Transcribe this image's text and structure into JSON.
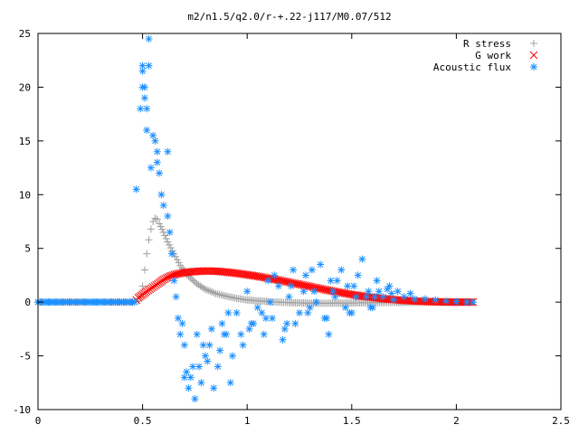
{
  "chart_data": {
    "type": "scatter",
    "title": "m2/n1.5/q2.0/r-+.22-j117/M0.07/512",
    "xlabel": "",
    "ylabel": "",
    "xlim": [
      0,
      2.5
    ],
    "ylim": [
      -10,
      25
    ],
    "xticks": [
      "0",
      "0.5",
      "1",
      "1.5",
      "2",
      "2.5"
    ],
    "yticks": [
      "-10",
      "-5",
      "0",
      "5",
      "10",
      "15",
      "20",
      "25"
    ],
    "grid": false,
    "legend_position": "top-right",
    "series": [
      {
        "name": "R stress",
        "marker": "plus",
        "color": "#a0a0a0",
        "x": [
          0,
          0.1,
          0.2,
          0.3,
          0.4,
          0.46,
          0.48,
          0.49,
          0.5,
          0.51,
          0.52,
          0.53,
          0.54,
          0.55,
          0.56,
          0.57,
          0.58,
          0.6,
          0.62,
          0.65,
          0.68,
          0.72,
          0.76,
          0.8,
          0.85,
          0.9,
          0.95,
          1.0,
          1.1,
          1.2,
          1.3,
          1.4,
          1.5,
          1.6,
          1.7,
          1.8,
          1.9,
          2.0,
          2.08
        ],
        "y": [
          0,
          0,
          0,
          0,
          0,
          0,
          0.1,
          0.5,
          1.5,
          3.0,
          4.5,
          5.8,
          6.8,
          7.5,
          7.8,
          7.7,
          7.3,
          6.5,
          5.6,
          4.5,
          3.4,
          2.4,
          1.7,
          1.2,
          0.8,
          0.55,
          0.35,
          0.2,
          0.05,
          -0.05,
          -0.1,
          -0.1,
          -0.08,
          -0.05,
          -0.03,
          -0.02,
          -0.01,
          0,
          0
        ]
      },
      {
        "name": "G work",
        "marker": "cross",
        "color": "#ff0000",
        "x": [
          0.47,
          0.48,
          0.5,
          0.52,
          0.55,
          0.58,
          0.6,
          0.63,
          0.66,
          0.7,
          0.75,
          0.8,
          0.85,
          0.9,
          0.95,
          1.0,
          1.05,
          1.1,
          1.15,
          1.2,
          1.25,
          1.3,
          1.35,
          1.4,
          1.45,
          1.5,
          1.55,
          1.6,
          1.65,
          1.7,
          1.75,
          1.8,
          1.85,
          1.9,
          1.95,
          2.0,
          2.05,
          2.08
        ],
        "y": [
          0.2,
          0.4,
          0.7,
          1.0,
          1.4,
          1.8,
          2.1,
          2.4,
          2.6,
          2.75,
          2.85,
          2.9,
          2.88,
          2.8,
          2.68,
          2.55,
          2.4,
          2.22,
          2.05,
          1.85,
          1.65,
          1.45,
          1.25,
          1.05,
          0.88,
          0.7,
          0.56,
          0.43,
          0.32,
          0.23,
          0.16,
          0.1,
          0.06,
          0.03,
          0.01,
          0,
          0,
          0
        ]
      },
      {
        "name": "Acoustic flux",
        "marker": "asterisk",
        "color": "#1e90ff",
        "x": [
          0,
          0.05,
          0.1,
          0.15,
          0.2,
          0.25,
          0.3,
          0.35,
          0.4,
          0.45,
          0.47,
          0.5,
          0.5,
          0.51,
          0.51,
          0.52,
          0.52,
          0.5,
          0.49,
          0.53,
          0.54,
          0.55,
          0.56,
          0.57,
          0.57,
          0.58,
          0.59,
          0.6,
          0.62,
          0.63,
          0.64,
          0.65,
          0.66,
          0.68,
          0.7,
          0.72,
          0.74,
          0.75,
          0.76,
          0.78,
          0.8,
          0.82,
          0.84,
          0.86,
          0.88,
          0.9,
          0.92,
          0.95,
          0.98,
          1.0,
          1.02,
          1.05,
          1.08,
          1.1,
          1.12,
          1.15,
          1.18,
          1.2,
          1.22,
          1.25,
          1.28,
          1.3,
          1.32,
          1.35,
          1.38,
          1.4,
          1.42,
          1.45,
          1.48,
          1.5,
          1.52,
          1.55,
          1.58,
          1.6,
          1.62,
          1.65,
          1.68,
          1.7,
          1.72,
          1.75,
          1.78,
          1.8,
          1.85,
          1.9,
          1.95,
          2.0,
          2.05,
          2.08,
          0.53,
          0.62,
          0.67,
          0.7,
          0.73,
          0.77,
          0.83,
          0.87,
          0.93,
          0.97,
          1.03,
          1.07,
          1.13,
          1.17,
          1.23,
          1.27,
          1.33,
          1.37,
          1.43,
          1.47,
          1.53,
          1.57,
          1.63,
          1.67,
          0.71,
          0.69,
          0.79,
          0.81,
          0.89,
          0.91,
          1.01,
          1.09,
          1.11,
          1.19,
          1.21,
          1.29,
          1.31,
          1.39,
          1.41,
          1.49,
          1.51,
          1.59,
          1.61,
          1.69
        ],
        "y": [
          0,
          0,
          0,
          0,
          0,
          0,
          0,
          0,
          0,
          0,
          10.5,
          22,
          21.5,
          20,
          19,
          18,
          16,
          20,
          18,
          24.5,
          12.5,
          15.5,
          15,
          13,
          14,
          12,
          10,
          9,
          8,
          6.5,
          4.5,
          2,
          0.5,
          -3,
          -7,
          -8,
          -6,
          -9,
          -3,
          -7.5,
          -5,
          -4,
          -8,
          -6,
          -2,
          -3,
          -7.5,
          -1,
          -4,
          1,
          -2,
          -0.5,
          -3,
          2,
          -1.5,
          1.5,
          -2.5,
          0.5,
          3,
          -1,
          2.5,
          -0.5,
          1,
          3.5,
          -1.5,
          2,
          0.5,
          3,
          1.5,
          -1,
          0.5,
          4,
          1,
          -0.5,
          2,
          0.5,
          1.5,
          0.2,
          1,
          0.5,
          0.8,
          0.3,
          0.3,
          0.2,
          0.1,
          0.05,
          0,
          0,
          22,
          14,
          -1.5,
          -4,
          -7,
          -6,
          -2.5,
          -4.5,
          -5,
          -3,
          -2,
          -1,
          2.5,
          -3.5,
          -2,
          1,
          0,
          -1.5,
          2,
          -0.5,
          2.5,
          0.5,
          1,
          1.2,
          -6.5,
          -2,
          -4,
          -5.5,
          -3,
          -1,
          -2.5,
          -1.5,
          0,
          -2,
          1.5,
          -1,
          3,
          -3,
          1,
          -1,
          1.5,
          -0.5,
          0.5,
          0.8
        ]
      }
    ]
  }
}
